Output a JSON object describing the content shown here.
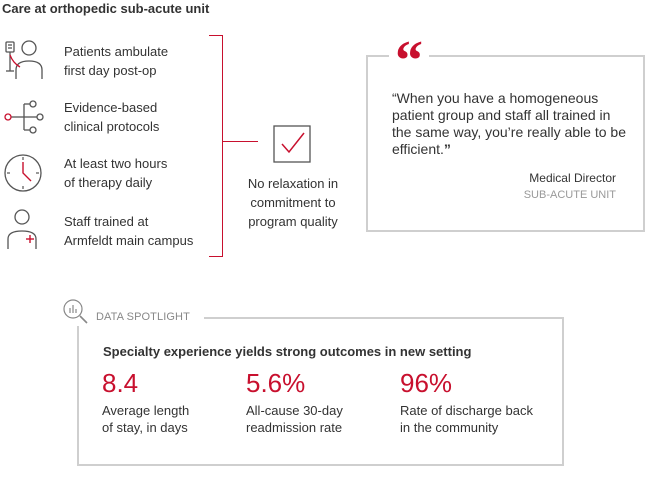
{
  "title": "Care at orthopedic sub-acute unit",
  "features": [
    {
      "icon": "patient-iv-icon",
      "lines": [
        "Patients ambulate",
        "first day post-op"
      ]
    },
    {
      "icon": "protocol-branch-icon",
      "lines": [
        "Evidence-based",
        "clinical protocols"
      ]
    },
    {
      "icon": "clock-icon",
      "lines": [
        "At least two hours",
        "of therapy daily"
      ]
    },
    {
      "icon": "staff-nurse-icon",
      "lines": [
        "Staff trained at",
        "Armfeldt main campus"
      ]
    }
  ],
  "commitment": {
    "icon": "checkbox-check-icon",
    "lines": [
      "No relaxation in",
      "commitment to",
      "program quality"
    ]
  },
  "quote": {
    "mark": "“",
    "text": "“When you have a homogeneous patient group and staff all trained in the same way, you’re really able to be efficient.",
    "close": "”",
    "author": "Medical Director",
    "org": "SUB-ACUTE UNIT"
  },
  "spotlight": {
    "label": "DATA SPOTLIGHT",
    "icon": "magnifier-chart-icon",
    "heading": "Specialty experience yields strong outcomes in new setting",
    "stats": [
      {
        "value": "8.4",
        "lines": [
          "Average length",
          "of stay, in days"
        ]
      },
      {
        "value": "5.6%",
        "lines": [
          "All-cause 30-day",
          "readmission rate"
        ]
      },
      {
        "value": "96%",
        "lines": [
          "Rate of discharge back",
          "in the community"
        ]
      }
    ]
  },
  "colors": {
    "accent": "#c8102e",
    "text": "#333333",
    "border": "#cfcfcf",
    "muted": "#999999"
  }
}
